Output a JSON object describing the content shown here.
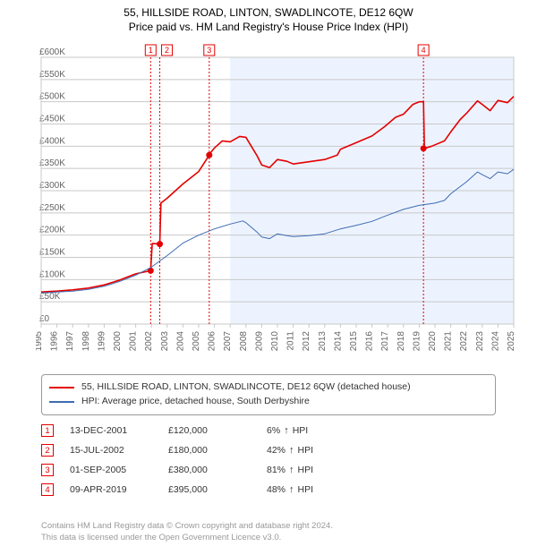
{
  "title_line1": "55, HILLSIDE ROAD, LINTON, SWADLINCOTE, DE12 6QW",
  "title_line2": "Price paid vs. HM Land Registry's House Price Index (HPI)",
  "chart": {
    "type": "line",
    "background_color": "#ffffff",
    "grid_color": "#c8c8c8",
    "shade_color": "#edf3fe",
    "forecast_start_year": 2007,
    "x": {
      "min": 1995,
      "max": 2025,
      "ticks": [
        1995,
        1996,
        1997,
        1998,
        1999,
        2000,
        2001,
        2002,
        2003,
        2004,
        2005,
        2006,
        2007,
        2008,
        2009,
        2010,
        2011,
        2012,
        2013,
        2014,
        2015,
        2016,
        2017,
        2018,
        2019,
        2020,
        2021,
        2022,
        2023,
        2024,
        2025
      ]
    },
    "y": {
      "min": 0,
      "max": 600,
      "ticks": [
        0,
        50,
        100,
        150,
        200,
        250,
        300,
        350,
        400,
        450,
        500,
        550,
        600
      ],
      "unit_prefix": "£",
      "unit_suffix": "K"
    },
    "series": [
      {
        "name": "55, HILLSIDE ROAD, LINTON, SWADLINCOTE, DE12 6QW (detached house)",
        "color": "#e40000",
        "width": 1.6,
        "points": [
          [
            1995,
            72
          ],
          [
            1996,
            74
          ],
          [
            1997,
            77
          ],
          [
            1998,
            81
          ],
          [
            1999,
            88
          ],
          [
            2000,
            99
          ],
          [
            2001,
            113
          ],
          [
            2001.95,
            120
          ],
          [
            2002.05,
            181
          ],
          [
            2002.53,
            180
          ],
          [
            2002.6,
            272
          ],
          [
            2003,
            283
          ],
          [
            2004,
            315
          ],
          [
            2005,
            343
          ],
          [
            2005.67,
            380
          ],
          [
            2005.73,
            384
          ],
          [
            2006,
            396
          ],
          [
            2006.5,
            412
          ],
          [
            2007,
            410
          ],
          [
            2007.6,
            422
          ],
          [
            2008,
            420
          ],
          [
            2008.7,
            379
          ],
          [
            2009,
            358
          ],
          [
            2009.5,
            352
          ],
          [
            2010,
            370
          ],
          [
            2010.6,
            366
          ],
          [
            2011,
            360
          ],
          [
            2012,
            365
          ],
          [
            2013,
            370
          ],
          [
            2013.8,
            380
          ],
          [
            2014,
            393
          ],
          [
            2015,
            408
          ],
          [
            2016,
            423
          ],
          [
            2016.8,
            444
          ],
          [
            2017,
            450
          ],
          [
            2017.5,
            465
          ],
          [
            2018,
            472
          ],
          [
            2018.6,
            494
          ],
          [
            2019,
            500
          ],
          [
            2019.27,
            500
          ],
          [
            2019.33,
            395
          ],
          [
            2019.8,
            400
          ],
          [
            2020,
            403
          ],
          [
            2020.6,
            412
          ],
          [
            2021,
            432
          ],
          [
            2021.6,
            460
          ],
          [
            2022,
            474
          ],
          [
            2022.7,
            502
          ],
          [
            2023,
            494
          ],
          [
            2023.5,
            480
          ],
          [
            2024,
            503
          ],
          [
            2024.6,
            498
          ],
          [
            2025,
            512
          ]
        ]
      },
      {
        "name": "HPI: Average price, detached house, South Derbyshire",
        "color": "#3e6cb3",
        "width": 1.0,
        "points": [
          [
            1995,
            70
          ],
          [
            1996,
            72
          ],
          [
            1997,
            74
          ],
          [
            1998,
            78
          ],
          [
            1999,
            85
          ],
          [
            2000,
            96
          ],
          [
            2001,
            110
          ],
          [
            2002,
            128
          ],
          [
            2003,
            154
          ],
          [
            2004,
            182
          ],
          [
            2005,
            200
          ],
          [
            2006,
            214
          ],
          [
            2007,
            225
          ],
          [
            2007.8,
            232
          ],
          [
            2008,
            228
          ],
          [
            2008.7,
            207
          ],
          [
            2009,
            196
          ],
          [
            2009.5,
            192
          ],
          [
            2010,
            203
          ],
          [
            2010.6,
            199
          ],
          [
            2011,
            197
          ],
          [
            2012,
            199
          ],
          [
            2013,
            203
          ],
          [
            2014,
            214
          ],
          [
            2015,
            222
          ],
          [
            2016,
            231
          ],
          [
            2017,
            245
          ],
          [
            2018,
            258
          ],
          [
            2019,
            267
          ],
          [
            2020,
            272
          ],
          [
            2020.6,
            278
          ],
          [
            2021,
            293
          ],
          [
            2022,
            320
          ],
          [
            2022.7,
            342
          ],
          [
            2023,
            336
          ],
          [
            2023.5,
            327
          ],
          [
            2024,
            342
          ],
          [
            2024.6,
            338
          ],
          [
            2025,
            348
          ]
        ]
      }
    ],
    "markers": [
      {
        "num": "1",
        "year": 2001.95,
        "price": 120
      },
      {
        "num": "2",
        "year": 2002.53,
        "price": 180
      },
      {
        "num": "3",
        "year": 2005.67,
        "price": 380
      },
      {
        "num": "4",
        "year": 2019.27,
        "price": 395,
        "dot_at": 395
      }
    ]
  },
  "legend": {
    "items": [
      {
        "color": "#e40000",
        "label": "55, HILLSIDE ROAD, LINTON, SWADLINCOTE, DE12 6QW (detached house)"
      },
      {
        "color": "#3e6cb3",
        "label": "HPI: Average price, detached house, South Derbyshire"
      }
    ]
  },
  "events": {
    "arrow_up": "↑",
    "hpi_label": "HPI",
    "rows": [
      {
        "num": "1",
        "date": "13-DEC-2001",
        "price": "£120,000",
        "diff": "6%"
      },
      {
        "num": "2",
        "date": "15-JUL-2002",
        "price": "£180,000",
        "diff": "42%"
      },
      {
        "num": "3",
        "date": "01-SEP-2005",
        "price": "£380,000",
        "diff": "81%"
      },
      {
        "num": "4",
        "date": "09-APR-2019",
        "price": "£395,000",
        "diff": "48%"
      }
    ]
  },
  "footer_line1": "Contains HM Land Registry data © Crown copyright and database right 2024.",
  "footer_line2": "This data is licensed under the Open Government Licence v3.0."
}
